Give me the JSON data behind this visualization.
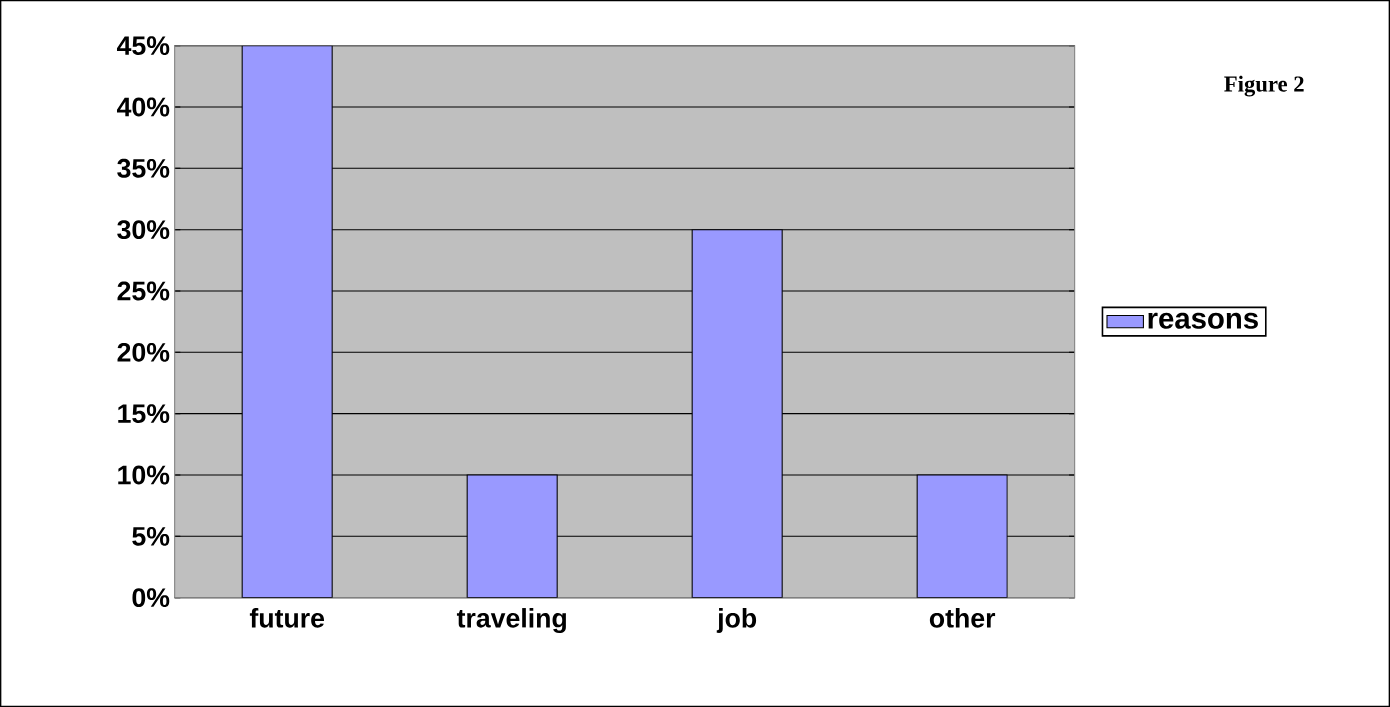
{
  "chart_data": {
    "type": "bar",
    "categories": [
      "future",
      "traveling",
      "job",
      "other"
    ],
    "series": [
      {
        "name": "reasons",
        "color": "#9999ff",
        "values": [
          45,
          10,
          30,
          10
        ]
      }
    ],
    "ylim": [
      0,
      45
    ],
    "yticks": [
      {
        "value": 0,
        "label": "0%"
      },
      {
        "value": 5,
        "label": "5%"
      },
      {
        "value": 10,
        "label": "10%"
      },
      {
        "value": 15,
        "label": "15%"
      },
      {
        "value": 20,
        "label": "20%"
      },
      {
        "value": 25,
        "label": "25%"
      },
      {
        "value": 30,
        "label": "30%"
      },
      {
        "value": 35,
        "label": "35%"
      },
      {
        "value": 40,
        "label": "40%"
      },
      {
        "value": 45,
        "label": "45%"
      }
    ],
    "grid": "y",
    "legend": "right",
    "annotations": [
      "Figure 2"
    ]
  }
}
